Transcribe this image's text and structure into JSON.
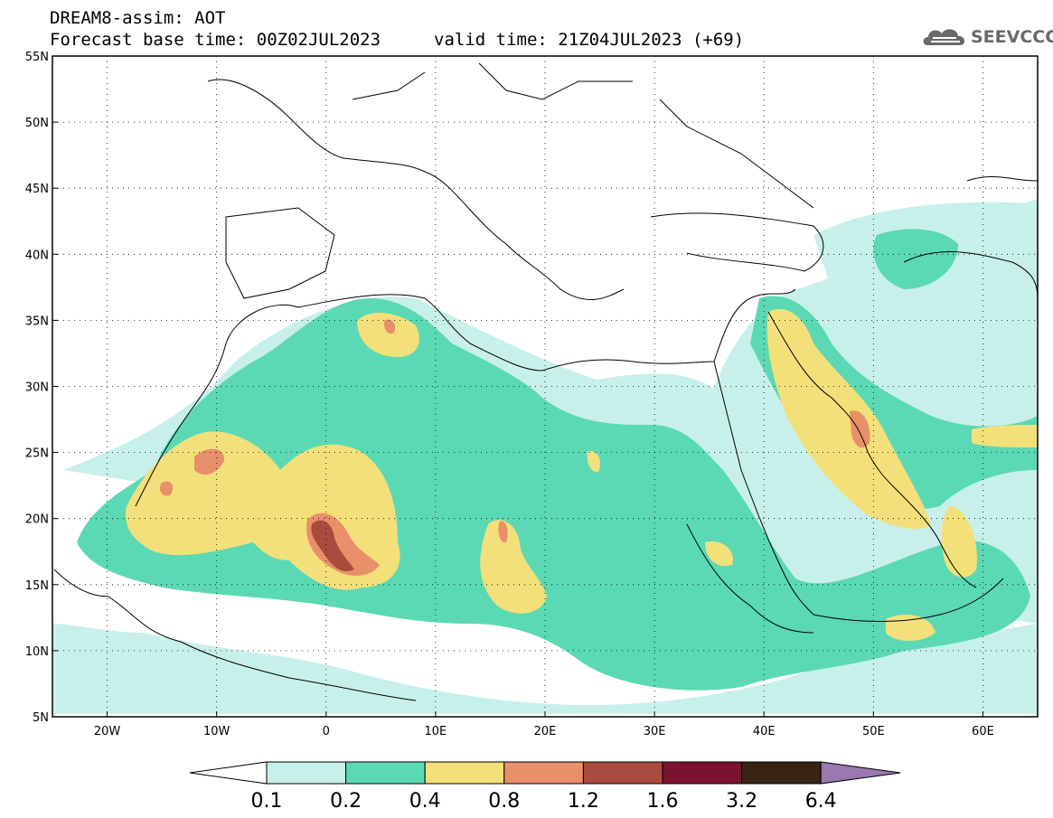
{
  "header": {
    "line1": "DREAM8-assim: AOT",
    "base": "Forecast base time: 00Z02JUL2023",
    "valid": "valid time: 21Z04JUL2023 (+69)"
  },
  "logo": {
    "text": "SEEVCCC",
    "icon": "cloud-icon"
  },
  "map": {
    "lon_range": [
      -25,
      65
    ],
    "lat_range": [
      5,
      55
    ],
    "lat_ticks": [
      "55N",
      "50N",
      "45N",
      "40N",
      "35N",
      "30N",
      "25N",
      "20N",
      "15N",
      "10N",
      "5N"
    ],
    "lon_ticks": [
      "20W",
      "10W",
      "0",
      "10E",
      "20E",
      "30E",
      "40E",
      "50E",
      "60E"
    ],
    "grid": "dotted"
  },
  "colorbar": {
    "labels": [
      "0.1",
      "0.2",
      "0.4",
      "0.8",
      "1.2",
      "1.6",
      "3.2",
      "6.4"
    ],
    "colors": [
      "#c8f0ea",
      "#5bd9b4",
      "#f3e07a",
      "#e8906a",
      "#a94c3e",
      "#7a1230",
      "#3a2414"
    ],
    "over_color": "#9b78b0",
    "under_color": "#ffffff"
  }
}
